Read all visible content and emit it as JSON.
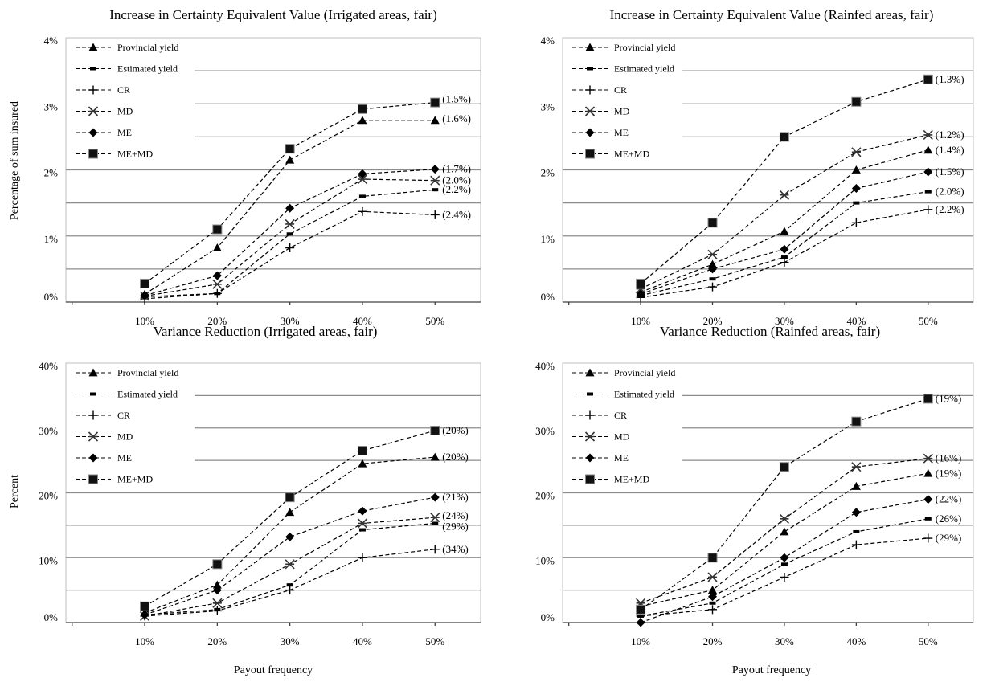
{
  "xlabel": "Payout frequency",
  "chart_data": [
    {
      "type": "line",
      "title": "Increase in Certainty Equivalent Value (Irrigated areas, fair)",
      "xlabel": "",
      "ylabel": "Percentage of sum insured",
      "categories": [
        "10%",
        "20%",
        "30%",
        "40%",
        "50%"
      ],
      "yticks": [
        "0%",
        "1%",
        "2%",
        "3%",
        "4%"
      ],
      "ylim": [
        0,
        4
      ],
      "grid": true,
      "legend": "top-left",
      "series": [
        {
          "name": "Provincial yield",
          "marker": "triangle",
          "values": [
            0.12,
            0.82,
            2.15,
            2.75,
            2.75
          ],
          "annotation": "(1.6%)"
        },
        {
          "name": "Estimated yield",
          "marker": "dash",
          "values": [
            0.08,
            0.13,
            1.03,
            1.6,
            1.7
          ],
          "annotation": "(2.2%)"
        },
        {
          "name": "CR",
          "marker": "plus",
          "values": [
            0.05,
            0.13,
            0.82,
            1.37,
            1.32
          ],
          "annotation": "(2.4%)"
        },
        {
          "name": "MD",
          "marker": "star",
          "values": [
            0.09,
            0.27,
            1.18,
            1.86,
            1.84
          ],
          "annotation": "(2.0%)"
        },
        {
          "name": "ME",
          "marker": "diamond",
          "values": [
            0.1,
            0.4,
            1.42,
            1.94,
            2.01
          ],
          "annotation": "(1.7%)"
        },
        {
          "name": "ME+MD",
          "marker": "square",
          "values": [
            0.28,
            1.1,
            2.32,
            2.92,
            3.02
          ],
          "annotation": "(1.5%)"
        }
      ]
    },
    {
      "type": "line",
      "title": "Increase in Certainty Equivalent Value (Rainfed areas, fair)",
      "xlabel": "",
      "ylabel": "",
      "categories": [
        "10%",
        "20%",
        "30%",
        "40%",
        "50%"
      ],
      "yticks": [
        "0%",
        "1%",
        "2%",
        "3%",
        "4%"
      ],
      "ylim": [
        0,
        4
      ],
      "grid": true,
      "legend": "top-left",
      "series": [
        {
          "name": "Provincial yield",
          "marker": "triangle",
          "values": [
            0.15,
            0.57,
            1.07,
            2.0,
            2.3
          ],
          "annotation": "(1.4%)"
        },
        {
          "name": "Estimated yield",
          "marker": "dash",
          "values": [
            0.1,
            0.35,
            0.68,
            1.5,
            1.67
          ],
          "annotation": "(2.0%)"
        },
        {
          "name": "CR",
          "marker": "plus",
          "values": [
            0.07,
            0.23,
            0.6,
            1.2,
            1.4
          ],
          "annotation": "(2.2%)"
        },
        {
          "name": "MD",
          "marker": "star",
          "values": [
            0.2,
            0.72,
            1.62,
            2.27,
            2.53
          ],
          "annotation": "(1.2%)"
        },
        {
          "name": "ME",
          "marker": "diamond",
          "values": [
            0.12,
            0.5,
            0.8,
            1.72,
            1.97
          ],
          "annotation": "(1.5%)"
        },
        {
          "name": "ME+MD",
          "marker": "square",
          "values": [
            0.28,
            1.2,
            2.5,
            3.03,
            3.37
          ],
          "annotation": "(1.3%)"
        }
      ]
    },
    {
      "type": "line",
      "title": "Variance Reduction (Irrigated areas, fair)",
      "xlabel": "Payout frequency",
      "ylabel": "Percent",
      "categories": [
        "10%",
        "20%",
        "30%",
        "40%",
        "50%"
      ],
      "yticks": [
        "0%",
        "10%",
        "20%",
        "30%",
        "40%"
      ],
      "ylim": [
        0,
        40
      ],
      "grid": true,
      "legend": "top-left",
      "series": [
        {
          "name": "Provincial yield",
          "marker": "triangle",
          "values": [
            1.5,
            5.8,
            17,
            24.5,
            25.5
          ],
          "annotation": "(20%)"
        },
        {
          "name": "Estimated yield",
          "marker": "dash",
          "values": [
            1.2,
            2,
            5.8,
            14.3,
            15.3
          ],
          "annotation": "(29%)"
        },
        {
          "name": "CR",
          "marker": "plus",
          "values": [
            1,
            1.8,
            5,
            10,
            11.3
          ],
          "annotation": "(34%)"
        },
        {
          "name": "MD",
          "marker": "star",
          "values": [
            1,
            3,
            9,
            15.3,
            16.2
          ],
          "annotation": "(24%)"
        },
        {
          "name": "ME",
          "marker": "diamond",
          "values": [
            1.2,
            5,
            13.2,
            17.2,
            19.3
          ],
          "annotation": "(21%)"
        },
        {
          "name": "ME+MD",
          "marker": "square",
          "values": [
            2.5,
            9,
            19.3,
            26.5,
            29.6
          ],
          "annotation": "(20%)"
        }
      ]
    },
    {
      "type": "line",
      "title": "Variance Reduction (Rainfed areas, fair)",
      "xlabel": "Payout frequency",
      "ylabel": "",
      "categories": [
        "10%",
        "20%",
        "30%",
        "40%",
        "50%"
      ],
      "yticks": [
        "0%",
        "10%",
        "20%",
        "30%",
        "40%"
      ],
      "ylim": [
        0,
        40
      ],
      "grid": true,
      "legend": "top-left",
      "series": [
        {
          "name": "Provincial yield",
          "marker": "triangle",
          "values": [
            2.5,
            5,
            14,
            21,
            23
          ],
          "annotation": "(19%)"
        },
        {
          "name": "Estimated yield",
          "marker": "dash",
          "values": [
            1,
            3,
            9,
            14,
            16
          ],
          "annotation": "(26%)"
        },
        {
          "name": "CR",
          "marker": "plus",
          "values": [
            1,
            2,
            7,
            12,
            13
          ],
          "annotation": "(29%)"
        },
        {
          "name": "MD",
          "marker": "star",
          "values": [
            3,
            7,
            16,
            24,
            25.3
          ],
          "annotation": "(16%)"
        },
        {
          "name": "ME",
          "marker": "diamond",
          "values": [
            0,
            4,
            10,
            17,
            19
          ],
          "annotation": "(22%)"
        },
        {
          "name": "ME+MD",
          "marker": "square",
          "values": [
            2,
            10,
            24,
            31,
            34.5
          ],
          "annotation": "(19%)"
        }
      ]
    }
  ]
}
